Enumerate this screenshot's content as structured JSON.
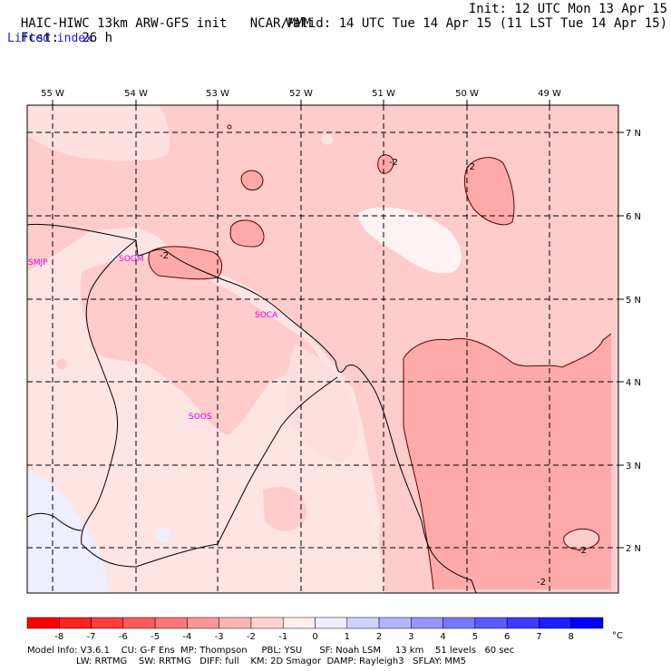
{
  "header": {
    "model": "HAIC-HIWC 13km ARW-GFS init",
    "org": "NCAR/MMM",
    "init": "Init: 12 UTC Mon 13 Apr 15",
    "fcst_label": "Fcst:",
    "fcst_value": "26 h",
    "valid": "Valid: 14 UTC Tue 14 Apr 15 (11 LST Tue 14 Apr 15)",
    "field": "Lifted index"
  },
  "axes": {
    "lon_labels": [
      "55 W",
      "54 W",
      "53 W",
      "52 W",
      "51 W",
      "50 W",
      "49 W"
    ],
    "lat_labels": [
      "7 N",
      "6 N",
      "5 N",
      "4 N",
      "3 N",
      "2 N"
    ]
  },
  "stations": [
    "SMJP",
    "SOGM",
    "SOCA",
    "SOOS"
  ],
  "contour_labels": [
    "-2",
    "-2",
    "-2",
    "-2",
    "-2",
    "-2"
  ],
  "colorbar": {
    "ticks": [
      "-8",
      "-7",
      "-6",
      "-5",
      "-4",
      "-3",
      "-2",
      "-1",
      "0",
      "1",
      "2",
      "3",
      "4",
      "5",
      "6",
      "7",
      "8"
    ],
    "unit": "°C",
    "colors": [
      "#ff0000",
      "#ff2020",
      "#ff3c3c",
      "#ff5a5a",
      "#ff7878",
      "#ff9696",
      "#ffb4b4",
      "#ffd2d2",
      "#ffeeee",
      "#eeeeff",
      "#d2d2ff",
      "#b4b4ff",
      "#9696ff",
      "#7878ff",
      "#5a5aff",
      "#3c3cff",
      "#1e1eff",
      "#0000ff"
    ]
  },
  "footer": {
    "line1": "Model Info: V3.6.1    CU: G-F Ens  MP: Thompson     PBL: YSU      SF: Noah LSM     13 km    51 levels   60 sec",
    "line2": "                 LW: RRTMG    SW: RRTMG   DIFF: full    KM: 2D Smagor  DAMP: Rayleigh3   SFLAY: MM5"
  }
}
